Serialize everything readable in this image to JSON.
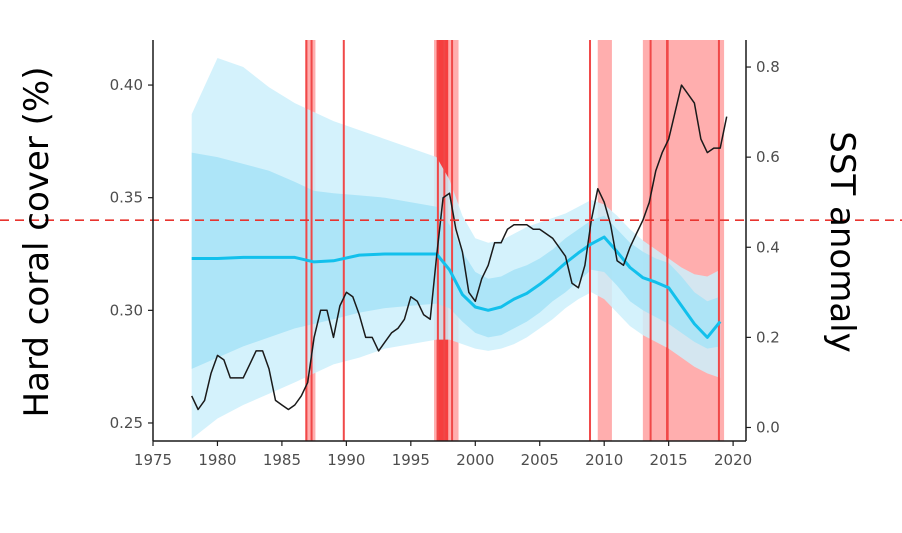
{
  "chart_data": {
    "type": "line",
    "title": "",
    "xlabel": "",
    "ylabel": "Hard coral cover (%)",
    "ylabel_right": "SST anomaly",
    "xlim": [
      1975,
      2021
    ],
    "ylim": [
      0.242,
      0.42
    ],
    "ylim_right": [
      -0.03,
      0.86
    ],
    "x_ticks": [
      1975,
      1980,
      1985,
      1990,
      1995,
      2000,
      2005,
      2010,
      2015,
      2020
    ],
    "y_ticks": [
      0.25,
      0.3,
      0.35,
      0.4
    ],
    "y_tick_labels": [
      "0.25",
      "0.30",
      "0.35",
      "0.40"
    ],
    "y_right_ticks": [
      0.0,
      0.2,
      0.4,
      0.6,
      0.8
    ],
    "y_right_tick_labels": [
      "0.0",
      "0.2",
      "0.4",
      "0.6",
      "0.8"
    ],
    "threshold_line": {
      "axis": "right",
      "value": 0.46,
      "style": "dashed",
      "color": "#e8342f"
    },
    "colors": {
      "coral_line": "#12c0ec",
      "band_outer": "#cdf0fb",
      "band_inner": "#a6e3f7",
      "sst_line": "#1a1a1a",
      "event_band": "#ff9a9a",
      "event_line": "#f04848",
      "event_strong": "#f52a2a",
      "axis": "#1a1a1a"
    },
    "series": [
      {
        "name": "Hard coral cover",
        "axis": "left",
        "x": [
          1978,
          1980,
          1982,
          1984,
          1986,
          1987.5,
          1989,
          1991,
          1993,
          1995,
          1997,
          1998,
          1999,
          2000,
          2001,
          2002,
          2003,
          2004,
          2005,
          2006,
          2007,
          2008,
          2009,
          2010,
          2011,
          2012,
          2013,
          2014,
          2015,
          2016,
          2017,
          2018,
          2019
        ],
        "values": [
          0.323,
          0.323,
          0.3235,
          0.3235,
          0.3235,
          0.3215,
          0.322,
          0.3245,
          0.325,
          0.325,
          0.325,
          0.318,
          0.307,
          0.3015,
          0.3,
          0.3015,
          0.305,
          0.3075,
          0.3115,
          0.316,
          0.321,
          0.3255,
          0.3295,
          0.3325,
          0.326,
          0.319,
          0.3145,
          0.3125,
          0.31,
          0.302,
          0.294,
          0.288,
          0.295
        ],
        "lower_outer": [
          0.243,
          0.252,
          0.258,
          0.263,
          0.268,
          0.272,
          0.276,
          0.279,
          0.283,
          0.285,
          0.287,
          0.287,
          0.285,
          0.283,
          0.282,
          0.283,
          0.285,
          0.288,
          0.292,
          0.296,
          0.301,
          0.305,
          0.308,
          0.305,
          0.299,
          0.293,
          0.289,
          0.286,
          0.283,
          0.279,
          0.275,
          0.272,
          0.27
        ],
        "upper_outer": [
          0.387,
          0.412,
          0.408,
          0.399,
          0.392,
          0.388,
          0.384,
          0.38,
          0.376,
          0.372,
          0.368,
          0.358,
          0.342,
          0.332,
          0.33,
          0.331,
          0.334,
          0.337,
          0.339,
          0.341,
          0.343,
          0.346,
          0.349,
          0.347,
          0.342,
          0.336,
          0.331,
          0.327,
          0.323,
          0.319,
          0.316,
          0.315,
          0.318
        ],
        "lower_inner": [
          0.274,
          0.279,
          0.284,
          0.288,
          0.292,
          0.294,
          0.296,
          0.299,
          0.301,
          0.302,
          0.303,
          0.301,
          0.295,
          0.29,
          0.288,
          0.289,
          0.292,
          0.295,
          0.299,
          0.304,
          0.308,
          0.313,
          0.318,
          0.317,
          0.311,
          0.304,
          0.3,
          0.297,
          0.294,
          0.29,
          0.286,
          0.283,
          0.284
        ],
        "upper_inner": [
          0.37,
          0.368,
          0.365,
          0.362,
          0.357,
          0.353,
          0.352,
          0.351,
          0.35,
          0.348,
          0.346,
          0.338,
          0.326,
          0.317,
          0.314,
          0.315,
          0.318,
          0.32,
          0.323,
          0.327,
          0.332,
          0.336,
          0.34,
          0.342,
          0.336,
          0.33,
          0.326,
          0.323,
          0.321,
          0.315,
          0.308,
          0.304,
          0.306
        ]
      },
      {
        "name": "SST anomaly",
        "axis": "right",
        "x": [
          1978,
          1978.5,
          1979,
          1979.5,
          1980,
          1980.5,
          1981,
          1981.5,
          1982,
          1982.5,
          1983,
          1983.5,
          1984,
          1984.5,
          1985,
          1985.5,
          1986,
          1986.5,
          1987,
          1987.5,
          1988,
          1988.5,
          1989,
          1989.5,
          1990,
          1990.5,
          1991,
          1991.5,
          1992,
          1992.5,
          1993,
          1993.5,
          1994,
          1994.5,
          1995,
          1995.5,
          1996,
          1996.5,
          1997,
          1997.5,
          1998,
          1998.5,
          1999,
          1999.5,
          2000,
          2000.5,
          2001,
          2001.5,
          2002,
          2002.5,
          2003,
          2003.5,
          2004,
          2004.5,
          2005,
          2005.5,
          2006,
          2006.5,
          2007,
          2007.5,
          2008,
          2008.5,
          2009,
          2009.5,
          2010,
          2010.5,
          2011,
          2011.5,
          2012,
          2012.5,
          2013,
          2013.5,
          2014,
          2014.5,
          2015,
          2015.5,
          2016,
          2016.5,
          2017,
          2017.5,
          2018,
          2018.5,
          2019,
          2019.5
        ],
        "values": [
          0.07,
          0.04,
          0.06,
          0.12,
          0.16,
          0.15,
          0.11,
          0.11,
          0.11,
          0.14,
          0.17,
          0.17,
          0.13,
          0.06,
          0.05,
          0.04,
          0.05,
          0.07,
          0.1,
          0.2,
          0.26,
          0.26,
          0.2,
          0.27,
          0.3,
          0.29,
          0.25,
          0.2,
          0.2,
          0.17,
          0.19,
          0.21,
          0.22,
          0.24,
          0.29,
          0.28,
          0.25,
          0.24,
          0.38,
          0.51,
          0.52,
          0.44,
          0.39,
          0.3,
          0.28,
          0.33,
          0.36,
          0.41,
          0.41,
          0.44,
          0.45,
          0.45,
          0.45,
          0.44,
          0.44,
          0.43,
          0.42,
          0.4,
          0.38,
          0.32,
          0.31,
          0.36,
          0.46,
          0.53,
          0.5,
          0.45,
          0.37,
          0.36,
          0.4,
          0.43,
          0.46,
          0.5,
          0.57,
          0.61,
          0.64,
          0.7,
          0.76,
          0.74,
          0.72,
          0.64,
          0.61,
          0.62,
          0.62,
          0.69
        ]
      }
    ],
    "event_bands": [
      {
        "start": 1986.8,
        "end": 1987.6
      },
      {
        "start": 1996.8,
        "end": 1998.7
      },
      {
        "start": 2009.5,
        "end": 2010.6
      },
      {
        "start": 2013.0,
        "end": 2019.3
      }
    ],
    "event_lines": [
      1986.9,
      1987.3,
      1989.8,
      1997.1,
      1997.6,
      1998.2,
      2008.9,
      2013.6,
      2014.9,
      2018.9
    ],
    "event_strong": [
      {
        "start": 1997.0,
        "end": 1997.9
      },
      {
        "start": 2014.8,
        "end": 2015.0
      }
    ]
  }
}
